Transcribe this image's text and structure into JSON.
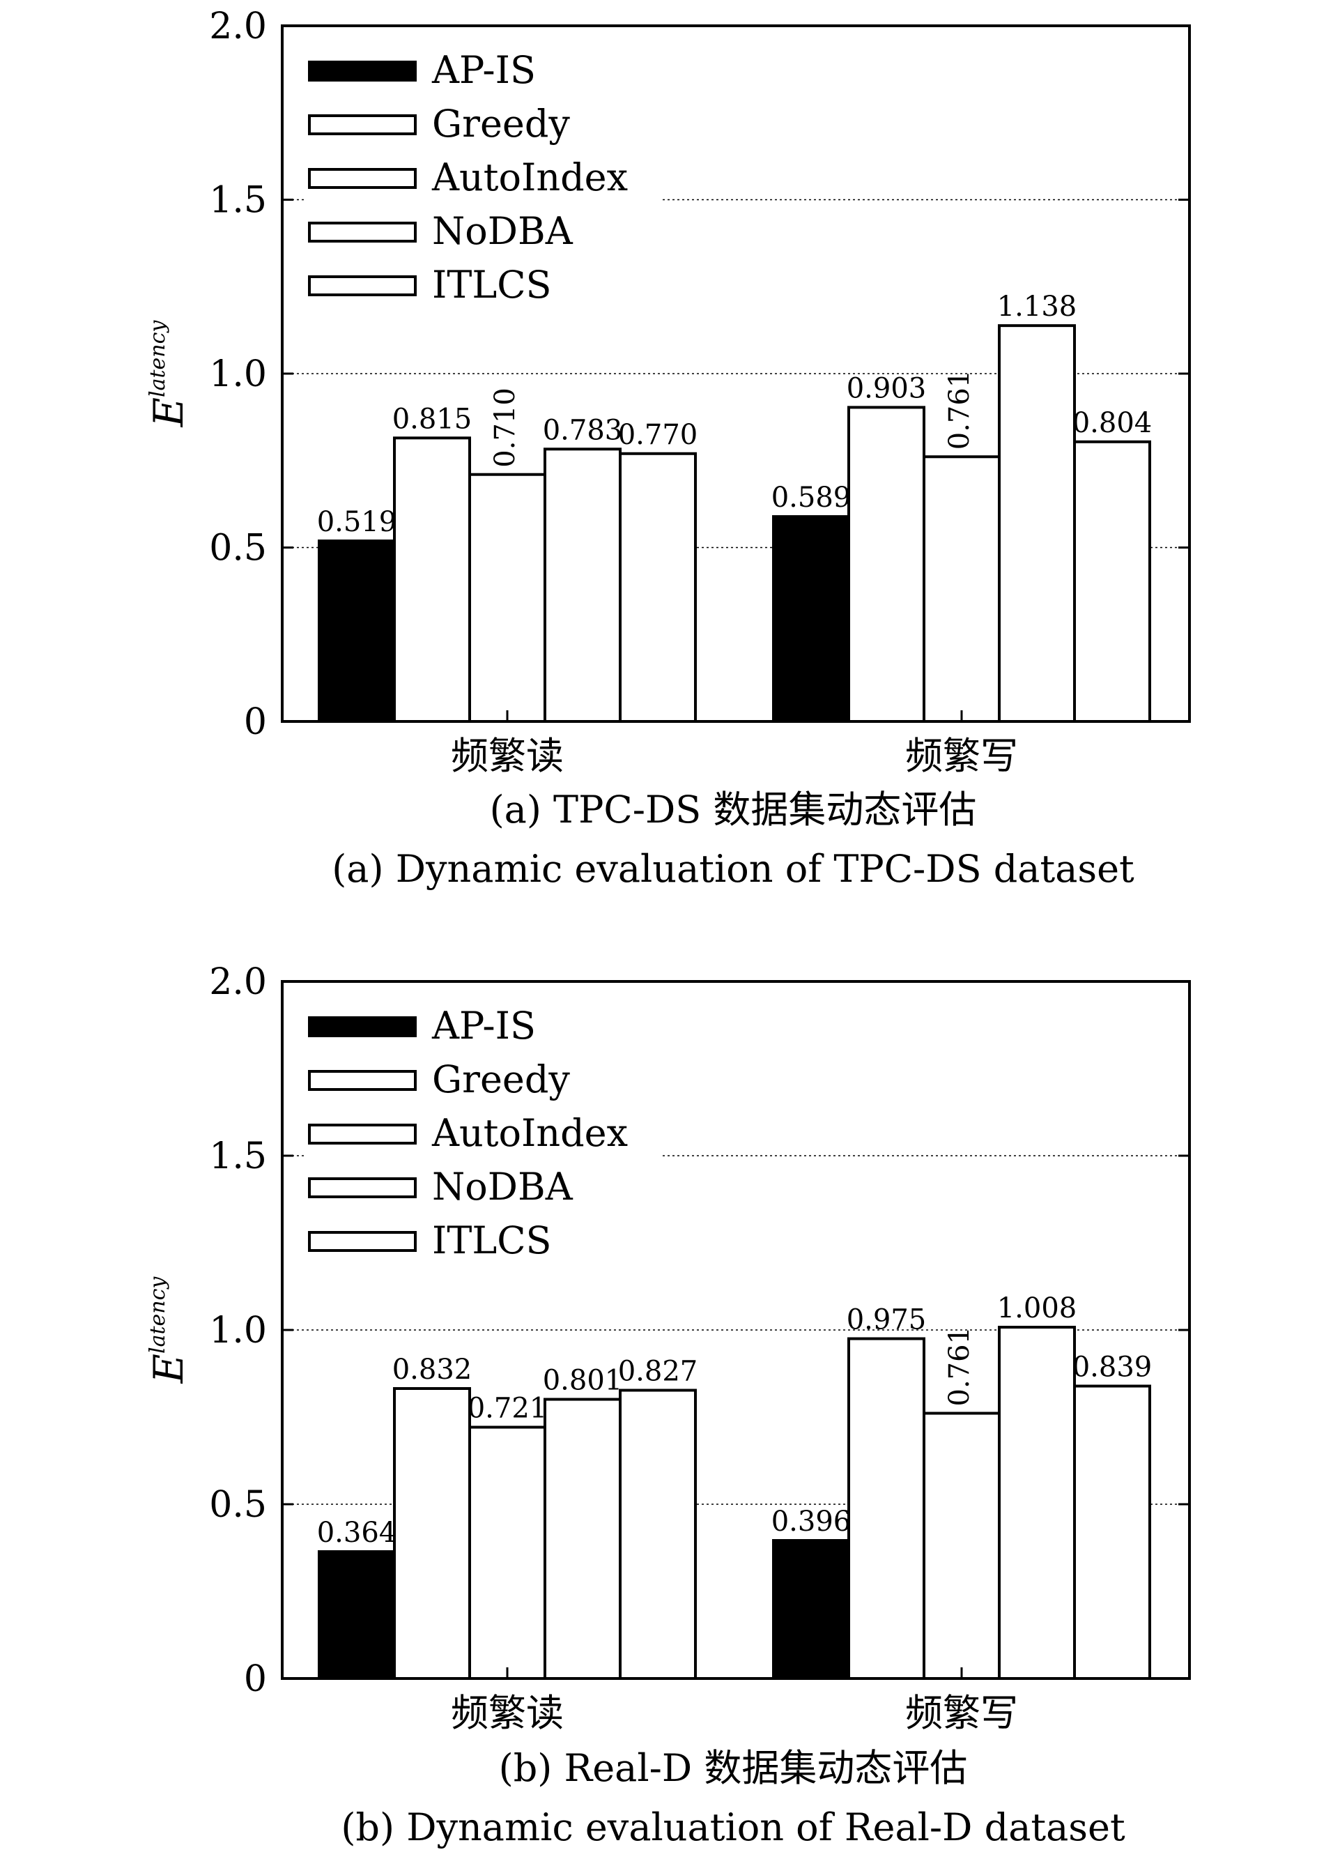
{
  "figure": {
    "panels": [
      {
        "caption_zh": "(a) TPC-DS 数据集动态评估",
        "caption_en": "(a) Dynamic evaluation of TPC-DS dataset"
      },
      {
        "caption_zh": "(b) Real-D 数据集动态评估",
        "caption_en": "(b) Dynamic evaluation of Real-D dataset"
      }
    ]
  },
  "chart_data": [
    {
      "type": "bar",
      "caption_zh": "(a) TPC-DS 数据集动态评估",
      "caption_en": "(a) Dynamic evaluation of TPC-DS dataset",
      "ylabel_base": "E",
      "ylabel_sup": "latency",
      "xlabel": "",
      "ylim": [
        0,
        2.0
      ],
      "yticks": [
        0,
        0.5,
        1.0,
        1.5,
        2.0
      ],
      "ytick_labels": [
        "0",
        "0.5",
        "1.0",
        "1.5",
        "2.0"
      ],
      "grid": "horizontal dotted",
      "legend_position": "top-left",
      "categories": [
        "频繁读",
        "频繁写"
      ],
      "series": [
        {
          "name": "AP-IS",
          "color": "#000000",
          "values": [
            0.519,
            0.589
          ],
          "labels": [
            "0.519",
            "0.589"
          ]
        },
        {
          "name": "Greedy",
          "color": "#ffffff",
          "values": [
            0.815,
            0.903
          ],
          "labels": [
            "0.815",
            "0.903"
          ]
        },
        {
          "name": "AutoIndex",
          "color": "#ffffff",
          "values": [
            0.71,
            0.761
          ],
          "labels": [
            "0.710",
            "0.761"
          ],
          "rotated_labels": true
        },
        {
          "name": "NoDBA",
          "color": "#ffffff",
          "values": [
            0.783,
            1.138
          ],
          "labels": [
            "0.783",
            "1.138"
          ]
        },
        {
          "name": "ITLCS",
          "color": "#ffffff",
          "values": [
            0.77,
            0.804
          ],
          "labels": [
            "0.770",
            "0.804"
          ]
        }
      ]
    },
    {
      "type": "bar",
      "caption_zh": "(b) Real-D 数据集动态评估",
      "caption_en": "(b) Dynamic evaluation of Real-D dataset",
      "ylabel_base": "E",
      "ylabel_sup": "latency",
      "xlabel": "",
      "ylim": [
        0,
        2.0
      ],
      "yticks": [
        0,
        0.5,
        1.0,
        1.5,
        2.0
      ],
      "ytick_labels": [
        "0",
        "0.5",
        "1.0",
        "1.5",
        "2.0"
      ],
      "grid": "horizontal dotted",
      "legend_position": "top-left",
      "categories": [
        "频繁读",
        "频繁写"
      ],
      "series": [
        {
          "name": "AP-IS",
          "color": "#000000",
          "values": [
            0.364,
            0.396
          ],
          "labels": [
            "0.364",
            "0.396"
          ]
        },
        {
          "name": "Greedy",
          "color": "#ffffff",
          "values": [
            0.832,
            0.975
          ],
          "labels": [
            "0.832",
            "0.975"
          ]
        },
        {
          "name": "AutoIndex",
          "color": "#ffffff",
          "values": [
            0.721,
            0.761
          ],
          "labels": [
            "0.721",
            "0.761"
          ],
          "rotated_labels": [
            false,
            true
          ]
        },
        {
          "name": "NoDBA",
          "color": "#ffffff",
          "values": [
            0.801,
            1.008
          ],
          "labels": [
            "0.801",
            "1.008"
          ]
        },
        {
          "name": "ITLCS",
          "color": "#ffffff",
          "values": [
            0.827,
            0.839
          ],
          "labels": [
            "0.827",
            "0.839"
          ]
        }
      ]
    }
  ]
}
